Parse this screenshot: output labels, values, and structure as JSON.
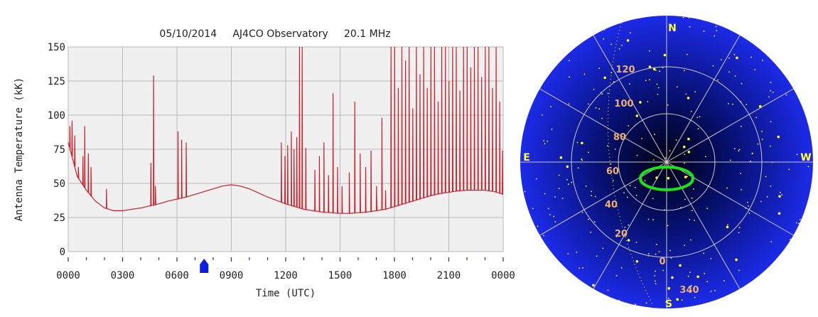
{
  "chart_data": [
    {
      "type": "line",
      "title": "05/10/2014     AJ4CO Observatory     20.1 MHz",
      "xlabel": "Time (UTC)",
      "ylabel": "Antenna Temperature (kK)",
      "ylim": [
        0,
        150
      ],
      "xlim": [
        0,
        24
      ],
      "x_unit": "hours UTC",
      "yticks": [
        "0",
        "25",
        "50",
        "75",
        "100",
        "125",
        "150"
      ],
      "xticks": [
        "0000",
        "0300",
        "0600",
        "0900",
        "1200",
        "1500",
        "1800",
        "2100",
        "0000"
      ],
      "grid": true,
      "line_color": "#c8212b",
      "marker": {
        "x": 7.5,
        "color": "#0a1ee6"
      },
      "baseline": {
        "x": [
          0,
          0.5,
          1,
          1.5,
          2,
          2.5,
          3,
          3.5,
          4,
          4.5,
          5,
          5.5,
          6,
          6.5,
          7,
          7.5,
          8,
          8.5,
          9,
          9.5,
          10,
          10.5,
          11,
          11.5,
          12,
          12.5,
          13,
          13.5,
          14,
          14.5,
          15,
          15.5,
          16,
          16.5,
          17,
          17.5,
          18,
          18.5,
          19,
          19.5,
          20,
          20.5,
          21,
          21.5,
          22,
          22.5,
          23,
          23.5,
          24
        ],
        "y": [
          80,
          55,
          45,
          37,
          32,
          30,
          30,
          31,
          32,
          33.5,
          35,
          37,
          38.5,
          40,
          42,
          44,
          46,
          48,
          49,
          48,
          46,
          43,
          40,
          37.5,
          35,
          33,
          31,
          30,
          29,
          28.5,
          28,
          28,
          28.5,
          29,
          30,
          31,
          33,
          35,
          37,
          39,
          41,
          42.5,
          43.5,
          44.5,
          45,
          45,
          45,
          44,
          42
        ]
      },
      "bursts": [
        {
          "x": 0.08,
          "y": 92
        },
        {
          "x": 0.2,
          "y": 96
        },
        {
          "x": 0.35,
          "y": 85
        },
        {
          "x": 0.55,
          "y": 62
        },
        {
          "x": 0.8,
          "y": 70
        },
        {
          "x": 0.9,
          "y": 92
        },
        {
          "x": 1.1,
          "y": 72
        },
        {
          "x": 1.25,
          "y": 62
        },
        {
          "x": 2.1,
          "y": 46
        },
        {
          "x": 4.55,
          "y": 65
        },
        {
          "x": 4.7,
          "y": 129
        },
        {
          "x": 4.8,
          "y": 48
        },
        {
          "x": 6.05,
          "y": 88
        },
        {
          "x": 6.25,
          "y": 82
        },
        {
          "x": 6.5,
          "y": 80
        },
        {
          "x": 11.75,
          "y": 80
        },
        {
          "x": 11.95,
          "y": 70
        },
        {
          "x": 12.1,
          "y": 78
        },
        {
          "x": 12.3,
          "y": 88
        },
        {
          "x": 12.45,
          "y": 75
        },
        {
          "x": 12.6,
          "y": 84
        },
        {
          "x": 12.75,
          "y": 150
        },
        {
          "x": 12.9,
          "y": 150
        },
        {
          "x": 13.1,
          "y": 76
        },
        {
          "x": 13.6,
          "y": 60
        },
        {
          "x": 13.85,
          "y": 70
        },
        {
          "x": 14.1,
          "y": 80
        },
        {
          "x": 14.35,
          "y": 56
        },
        {
          "x": 14.6,
          "y": 116
        },
        {
          "x": 14.85,
          "y": 62
        },
        {
          "x": 15.1,
          "y": 48
        },
        {
          "x": 15.5,
          "y": 58
        },
        {
          "x": 15.8,
          "y": 110
        },
        {
          "x": 16.1,
          "y": 72
        },
        {
          "x": 16.4,
          "y": 62
        },
        {
          "x": 16.7,
          "y": 74
        },
        {
          "x": 17.0,
          "y": 48
        },
        {
          "x": 17.3,
          "y": 98
        },
        {
          "x": 17.5,
          "y": 45
        },
        {
          "x": 17.8,
          "y": 150
        },
        {
          "x": 18.0,
          "y": 150
        },
        {
          "x": 18.2,
          "y": 120
        },
        {
          "x": 18.4,
          "y": 150
        },
        {
          "x": 18.6,
          "y": 140
        },
        {
          "x": 18.8,
          "y": 150
        },
        {
          "x": 19.0,
          "y": 105
        },
        {
          "x": 19.2,
          "y": 150
        },
        {
          "x": 19.4,
          "y": 130
        },
        {
          "x": 19.6,
          "y": 150
        },
        {
          "x": 19.8,
          "y": 120
        },
        {
          "x": 20.0,
          "y": 150
        },
        {
          "x": 20.2,
          "y": 150
        },
        {
          "x": 20.4,
          "y": 110
        },
        {
          "x": 20.6,
          "y": 150
        },
        {
          "x": 20.8,
          "y": 150
        },
        {
          "x": 21.0,
          "y": 125
        },
        {
          "x": 21.2,
          "y": 150
        },
        {
          "x": 21.4,
          "y": 150
        },
        {
          "x": 21.6,
          "y": 118
        },
        {
          "x": 21.8,
          "y": 150
        },
        {
          "x": 22.0,
          "y": 150
        },
        {
          "x": 22.2,
          "y": 135
        },
        {
          "x": 22.4,
          "y": 150
        },
        {
          "x": 22.6,
          "y": 150
        },
        {
          "x": 22.8,
          "y": 128
        },
        {
          "x": 23.0,
          "y": 150
        },
        {
          "x": 23.2,
          "y": 150
        },
        {
          "x": 23.4,
          "y": 120
        },
        {
          "x": 23.6,
          "y": 150
        },
        {
          "x": 23.8,
          "y": 110
        },
        {
          "x": 23.95,
          "y": 74
        }
      ]
    },
    {
      "type": "polar-sky-map",
      "directions": {
        "north": "N",
        "south": "S",
        "east": "E",
        "west": "W"
      },
      "ra_labels": [
        "120",
        "100",
        "80",
        "60",
        "40",
        "20",
        "0",
        "340"
      ],
      "background_color": "#1a14e0",
      "star_color": "#ffff30",
      "highlight_color": "#19e619"
    }
  ]
}
